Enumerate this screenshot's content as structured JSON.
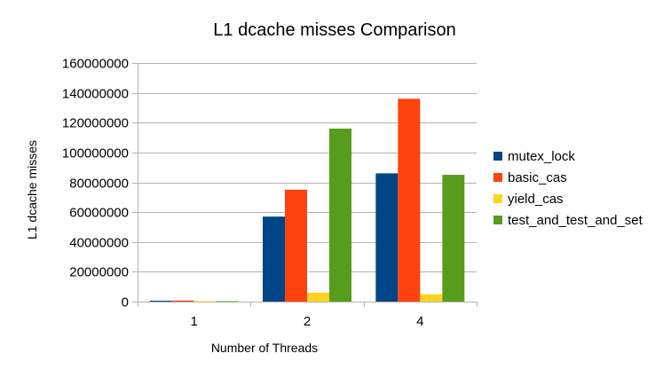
{
  "chart_data": {
    "type": "bar",
    "title": "L1 dcache misses Comparison",
    "xlabel": "Number of Threads",
    "ylabel": "L1 dcache misses",
    "categories": [
      "1",
      "2",
      "4"
    ],
    "ylim": [
      0,
      160000000
    ],
    "yticks": [
      0,
      20000000,
      40000000,
      60000000,
      80000000,
      100000000,
      120000000,
      140000000,
      160000000
    ],
    "grid": true,
    "legend_position": "right",
    "series": [
      {
        "name": "mutex_lock",
        "color": "#004586",
        "values": [
          600000,
          57000000,
          86000000
        ]
      },
      {
        "name": "basic_cas",
        "color": "#ff420e",
        "values": [
          700000,
          75000000,
          136000000
        ]
      },
      {
        "name": "yield_cas",
        "color": "#ffd320",
        "values": [
          300000,
          6000000,
          5000000
        ]
      },
      {
        "name": "test_and_test_and_set",
        "color": "#579d1c",
        "values": [
          300000,
          116000000,
          85000000
        ]
      }
    ]
  }
}
